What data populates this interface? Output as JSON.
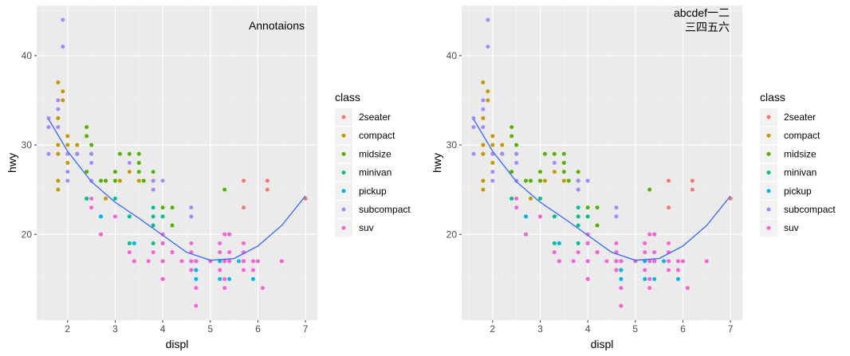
{
  "chart_data": [
    {
      "type": "scatter",
      "xlabel": "displ",
      "ylabel": "hwy",
      "xlim": [
        1.35,
        7.25
      ],
      "ylim": [
        10.4,
        45.6
      ],
      "xticks": [
        2,
        3,
        4,
        5,
        6,
        7
      ],
      "yticks": [
        20,
        30,
        40
      ],
      "grid": true,
      "annotation": [
        "Annotaions"
      ],
      "legend": {
        "title": "class",
        "position": "right"
      },
      "series": [
        {
          "name": "2seater",
          "color": "#F8766D",
          "points": [
            [
              5.7,
              26
            ],
            [
              5.7,
              23
            ],
            [
              6.2,
              26
            ],
            [
              6.2,
              25
            ],
            [
              7.0,
              24
            ]
          ]
        },
        {
          "name": "compact",
          "color": "#C49A00",
          "points": [
            [
              1.8,
              29
            ],
            [
              1.8,
              29
            ],
            [
              2.0,
              31
            ],
            [
              2.0,
              30
            ],
            [
              2.8,
              26
            ],
            [
              1.8,
              26
            ],
            [
              1.8,
              25
            ],
            [
              2.0,
              28
            ],
            [
              2.0,
              29
            ],
            [
              1.9,
              36
            ],
            [
              1.9,
              35
            ],
            [
              1.8,
              33
            ],
            [
              1.8,
              37
            ],
            [
              2.4,
              27
            ],
            [
              2.2,
              30
            ],
            [
              2.2,
              29
            ],
            [
              3.0,
              26
            ],
            [
              3.3,
              27
            ],
            [
              2.5,
              29
            ],
            [
              3.5,
              26
            ],
            [
              1.8,
              30
            ],
            [
              2.8,
              24
            ],
            [
              3.1,
              26
            ]
          ]
        },
        {
          "name": "midsize",
          "color": "#53B400",
          "points": [
            [
              2.4,
              32
            ],
            [
              2.4,
              31
            ],
            [
              2.5,
              29
            ],
            [
              2.7,
              26
            ],
            [
              2.8,
              26
            ],
            [
              3.0,
              26
            ],
            [
              3.1,
              29
            ],
            [
              3.3,
              29
            ],
            [
              3.5,
              28
            ],
            [
              3.5,
              29
            ],
            [
              3.6,
              26
            ],
            [
              3.8,
              26
            ],
            [
              3.8,
              27
            ],
            [
              3.8,
              25
            ],
            [
              3.0,
              27
            ],
            [
              2.5,
              30
            ],
            [
              4.0,
              23
            ],
            [
              4.2,
              23
            ],
            [
              4.2,
              21
            ],
            [
              5.3,
              25
            ],
            [
              3.5,
              27
            ],
            [
              2.2,
              29
            ],
            [
              2.4,
              27
            ],
            [
              2.4,
              24
            ]
          ]
        },
        {
          "name": "minivan",
          "color": "#00C094",
          "points": [
            [
              2.4,
              24
            ],
            [
              3.0,
              24
            ],
            [
              3.3,
              22
            ],
            [
              3.3,
              19
            ],
            [
              3.8,
              22
            ],
            [
              3.8,
              23
            ],
            [
              4.0,
              22
            ],
            [
              3.3,
              22
            ],
            [
              3.8,
              19
            ],
            [
              2.7,
              22
            ],
            [
              3.8,
              21
            ]
          ]
        },
        {
          "name": "pickup",
          "color": "#00B6EB",
          "points": [
            [
              2.7,
              20
            ],
            [
              2.7,
              22
            ],
            [
              3.4,
              19
            ],
            [
              3.4,
              17
            ],
            [
              4.0,
              17
            ],
            [
              4.0,
              19
            ],
            [
              4.7,
              16
            ],
            [
              4.7,
              15
            ],
            [
              4.7,
              17
            ],
            [
              5.2,
              17
            ],
            [
              5.2,
              15
            ],
            [
              5.7,
              17
            ],
            [
              5.9,
              15
            ],
            [
              4.6,
              17
            ],
            [
              5.4,
              15
            ],
            [
              5.4,
              17
            ],
            [
              4.7,
              17
            ],
            [
              4.7,
              16
            ],
            [
              5.6,
              17
            ],
            [
              4.6,
              16
            ]
          ]
        },
        {
          "name": "subcompact",
          "color": "#A58AFF",
          "points": [
            [
              1.6,
              33
            ],
            [
              1.6,
              32
            ],
            [
              1.6,
              29
            ],
            [
              1.8,
              35
            ],
            [
              1.8,
              34
            ],
            [
              1.9,
              44
            ],
            [
              1.9,
              41
            ],
            [
              2.0,
              29
            ],
            [
              2.0,
              26
            ],
            [
              2.2,
              29
            ],
            [
              2.5,
              28
            ],
            [
              2.0,
              27
            ],
            [
              2.5,
              29
            ],
            [
              3.8,
              26
            ],
            [
              3.8,
              25
            ],
            [
              4.0,
              26
            ],
            [
              4.6,
              23
            ],
            [
              4.6,
              22
            ],
            [
              5.4,
              20
            ],
            [
              2.5,
              26
            ],
            [
              3.3,
              28
            ],
            [
              1.8,
              32
            ]
          ]
        },
        {
          "name": "suv",
          "color": "#FB61D7",
          "points": [
            [
              5.3,
              20
            ],
            [
              5.3,
              15
            ],
            [
              5.7,
              17
            ],
            [
              6.0,
              17
            ],
            [
              6.5,
              17
            ],
            [
              4.7,
              12
            ],
            [
              4.7,
              17
            ],
            [
              5.2,
              18
            ],
            [
              5.7,
              18
            ],
            [
              5.9,
              17
            ],
            [
              4.6,
              18
            ],
            [
              5.4,
              17
            ],
            [
              5.4,
              20
            ],
            [
              4.0,
              20
            ],
            [
              4.6,
              19
            ],
            [
              3.0,
              22
            ],
            [
              3.7,
              17
            ],
            [
              4.2,
              18
            ],
            [
              4.7,
              14
            ],
            [
              5.0,
              17
            ],
            [
              5.3,
              14
            ],
            [
              6.1,
              14
            ],
            [
              3.4,
              17
            ],
            [
              4.0,
              15
            ],
            [
              4.2,
              18
            ],
            [
              4.4,
              17
            ],
            [
              5.4,
              18
            ],
            [
              2.5,
              23
            ],
            [
              2.7,
              20
            ],
            [
              3.3,
              18
            ],
            [
              3.8,
              18
            ],
            [
              4.0,
              19
            ],
            [
              4.6,
              16
            ],
            [
              5.9,
              16
            ],
            [
              5.7,
              19
            ],
            [
              5.2,
              19
            ],
            [
              4.0,
              15
            ],
            [
              5.3,
              17
            ],
            [
              4.0,
              17
            ],
            [
              4.6,
              17
            ],
            [
              5.2,
              16
            ],
            [
              5.7,
              16
            ],
            [
              2.5,
              24
            ]
          ]
        }
      ],
      "smooth": [
        [
          1.6,
          32.9
        ],
        [
          2.0,
          29.3
        ],
        [
          2.5,
          25.9
        ],
        [
          3.0,
          23.6
        ],
        [
          3.5,
          21.8
        ],
        [
          4.0,
          19.9
        ],
        [
          4.5,
          18.0
        ],
        [
          5.0,
          17.1
        ],
        [
          5.5,
          17.3
        ],
        [
          6.0,
          18.7
        ],
        [
          6.5,
          21.0
        ],
        [
          7.0,
          24.3
        ]
      ]
    },
    {
      "type": "scatter",
      "xlabel": "displ",
      "ylabel": "hwy",
      "xlim": [
        1.35,
        7.25
      ],
      "ylim": [
        10.4,
        45.6
      ],
      "xticks": [
        2,
        3,
        4,
        5,
        6,
        7
      ],
      "yticks": [
        20,
        30,
        40
      ],
      "grid": true,
      "annotation": [
        "abcdef一二",
        "三四五六"
      ],
      "legend": {
        "title": "class",
        "position": "right"
      },
      "series": "same as first panel",
      "smooth": "same as first panel"
    }
  ]
}
